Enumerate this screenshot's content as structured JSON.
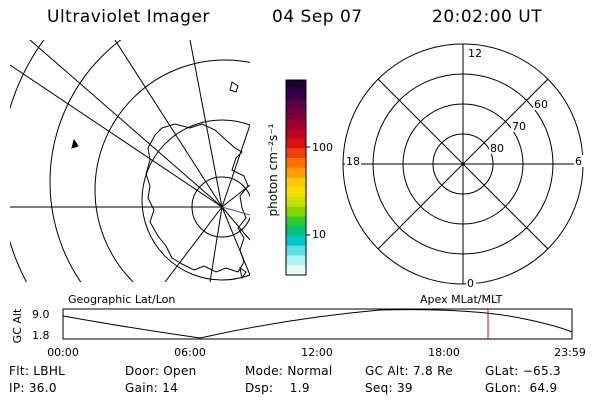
{
  "header": {
    "instrument": "Ultraviolet Imager",
    "date": "04 Sep 07",
    "time": "20:02:00 UT"
  },
  "colorbar": {
    "unit_label": "photon cm⁻²s⁻¹",
    "ticks": [
      "100",
      "10"
    ],
    "colors": [
      "#1a0030",
      "#350045",
      "#5a0040",
      "#7a003a",
      "#9a0030",
      "#c00020",
      "#dd1010",
      "#f04010",
      "#ff7000",
      "#ffa000",
      "#ffc800",
      "#f0e000",
      "#c8e000",
      "#80d800",
      "#30c830",
      "#00c080",
      "#00c8c8",
      "#60e0e0",
      "#b0f0f0",
      "#e8f8f8"
    ]
  },
  "polar_plot": {
    "mlt_labels": {
      "top": "12",
      "bottom": "0",
      "left": "18",
      "right": "6"
    },
    "lat_labels": [
      "60",
      "70",
      "80"
    ]
  },
  "altitude_plot": {
    "left_title": "Geographic Lat/Lon",
    "right_title": "Apex MLat/MLT",
    "ylabel": "GC Alt",
    "y_ticks": [
      "9.0",
      "1.8"
    ],
    "x_ticks": [
      "00:00",
      "06:00",
      "12:00",
      "18:00",
      "23:59"
    ],
    "current_time_fraction": 0.835,
    "marker_color": "#cc0000"
  },
  "info_rows": [
    {
      "c1": "Flt: LBHL",
      "c2": "Door: Open",
      "c3": "Mode: Normal",
      "c4": "GC Alt: 7.8 Re",
      "c5": "GLat: −65.3"
    },
    {
      "c1": "IP: 36.0",
      "c2": "Gain: 14",
      "c3": "Dsp:    1.9",
      "c4": "Seq: 39",
      "c5": "GLon:  64.9"
    }
  ]
}
